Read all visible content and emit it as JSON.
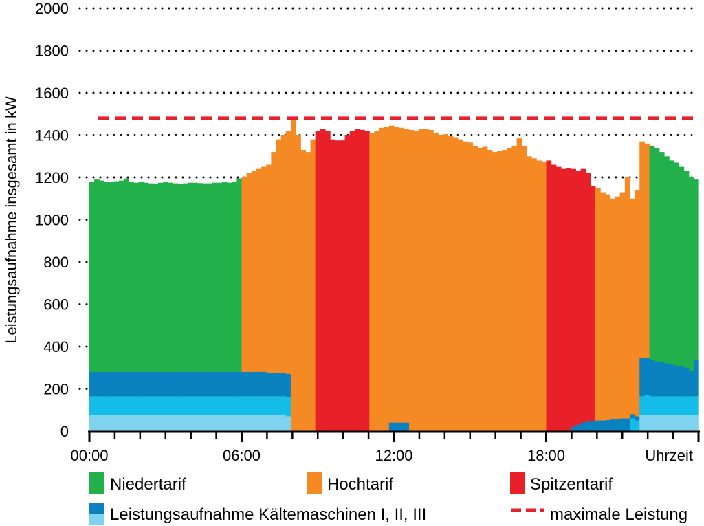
{
  "chart_data": {
    "type": "bar",
    "ylabel": "Leistungsaufnahme insgesamt in kW",
    "xlabel": "Uhrzeit",
    "ylim": [
      0,
      2000
    ],
    "xlim": [
      0,
      24
    ],
    "yticks": [
      0,
      200,
      400,
      600,
      800,
      1000,
      1200,
      1400,
      1600,
      1800,
      2000
    ],
    "xtick_labels": [
      "00:00",
      "06:00",
      "12:00",
      "18:00"
    ],
    "xtick_hours": [
      0,
      6,
      12,
      18
    ],
    "grid": "dotted-horizontal",
    "max_power_kw": 1480,
    "colors": {
      "niedertarif": "#22b04b",
      "hochtarif": "#f58a25",
      "spitzentarif": "#e8202a",
      "chiller_light": "#7fd3ee",
      "chiller_mid": "#14bce8",
      "chiller_dark": "#0a82bf",
      "max_line": "#e8202a",
      "grid": "#000000"
    },
    "tariff_periods": [
      {
        "start": 0,
        "end": 6,
        "tariff": "niedertarif"
      },
      {
        "start": 6,
        "end": 9,
        "tariff": "hochtarif"
      },
      {
        "start": 9,
        "end": 11,
        "tariff": "spitzentarif"
      },
      {
        "start": 11,
        "end": 18,
        "tariff": "hochtarif"
      },
      {
        "start": 18,
        "end": 20,
        "tariff": "spitzentarif"
      },
      {
        "start": 20,
        "end": 22,
        "tariff": "hochtarif"
      },
      {
        "start": 22,
        "end": 24,
        "tariff": "niedertarif"
      }
    ],
    "total_kw": [
      1180,
      1190,
      1185,
      1180,
      1178,
      1182,
      1185,
      1195,
      1180,
      1175,
      1178,
      1175,
      1172,
      1170,
      1175,
      1180,
      1175,
      1172,
      1170,
      1172,
      1175,
      1175,
      1173,
      1172,
      1172,
      1175,
      1175,
      1180,
      1175,
      1180,
      1195,
      1200,
      1220,
      1230,
      1240,
      1250,
      1260,
      1320,
      1380,
      1400,
      1420,
      1470,
      1400,
      1330,
      1320,
      1380,
      1420,
      1430,
      1420,
      1380,
      1375,
      1375,
      1400,
      1420,
      1430,
      1425,
      1420,
      1410,
      1420,
      1435,
      1440,
      1445,
      1440,
      1435,
      1430,
      1425,
      1420,
      1430,
      1430,
      1425,
      1410,
      1400,
      1405,
      1395,
      1390,
      1380,
      1370,
      1365,
      1350,
      1340,
      1345,
      1330,
      1320,
      1325,
      1330,
      1340,
      1350,
      1385,
      1350,
      1300,
      1290,
      1280,
      1275,
      1280,
      1260,
      1250,
      1240,
      1245,
      1240,
      1230,
      1240,
      1220,
      1160,
      1150,
      1130,
      1120,
      1100,
      1110,
      1130,
      1200,
      1100,
      1140,
      1370,
      1360,
      1350,
      1340,
      1320,
      1300,
      1280,
      1270,
      1250,
      1230,
      1200,
      1190
    ],
    "chiller_light_kw": [
      75,
      75,
      75,
      75,
      75,
      75,
      75,
      75,
      75,
      75,
      75,
      75,
      75,
      75,
      75,
      75,
      75,
      75,
      75,
      75,
      75,
      75,
      75,
      75,
      75,
      75,
      75,
      75,
      75,
      75,
      75,
      75,
      75,
      75,
      75,
      75,
      75,
      75,
      75,
      75,
      70,
      0,
      0,
      0,
      0,
      0,
      0,
      0,
      0,
      0,
      0,
      0,
      0,
      0,
      0,
      0,
      0,
      0,
      0,
      0,
      0,
      0,
      0,
      0,
      0,
      0,
      0,
      0,
      0,
      0,
      0,
      0,
      0,
      0,
      0,
      0,
      0,
      0,
      0,
      0,
      0,
      0,
      0,
      0,
      0,
      0,
      0,
      0,
      0,
      0,
      0,
      0,
      0,
      0,
      0,
      0,
      0,
      0,
      0,
      0,
      0,
      0,
      0,
      0,
      0,
      0,
      0,
      0,
      0,
      0,
      0,
      0,
      75,
      75,
      75,
      75,
      75,
      75,
      75,
      75,
      75,
      75,
      75,
      75
    ],
    "chiller_mid_kw": [
      90,
      90,
      90,
      90,
      90,
      90,
      90,
      90,
      90,
      90,
      90,
      90,
      90,
      90,
      90,
      90,
      90,
      90,
      90,
      90,
      90,
      90,
      90,
      90,
      90,
      90,
      90,
      90,
      90,
      90,
      90,
      90,
      90,
      90,
      90,
      90,
      90,
      90,
      90,
      90,
      90,
      0,
      0,
      0,
      0,
      0,
      0,
      0,
      0,
      0,
      0,
      0,
      0,
      0,
      0,
      0,
      0,
      0,
      0,
      0,
      0,
      0,
      0,
      0,
      0,
      0,
      0,
      0,
      0,
      0,
      0,
      0,
      0,
      0,
      0,
      0,
      0,
      0,
      0,
      0,
      0,
      0,
      0,
      0,
      0,
      0,
      0,
      0,
      0,
      0,
      0,
      0,
      0,
      0,
      0,
      0,
      0,
      0,
      0,
      0,
      0,
      0,
      0,
      0,
      0,
      0,
      0,
      0,
      0,
      0,
      60,
      50,
      90,
      95,
      90,
      90,
      90,
      90,
      90,
      90,
      90,
      90,
      90,
      90
    ],
    "chiller_dark_kw": [
      115,
      115,
      115,
      115,
      115,
      115,
      115,
      115,
      115,
      115,
      115,
      115,
      115,
      115,
      115,
      115,
      115,
      115,
      115,
      115,
      115,
      115,
      115,
      115,
      115,
      115,
      115,
      115,
      115,
      115,
      115,
      115,
      115,
      115,
      115,
      115,
      110,
      110,
      110,
      110,
      110,
      0,
      0,
      0,
      0,
      0,
      0,
      0,
      0,
      0,
      0,
      0,
      0,
      0,
      0,
      0,
      0,
      0,
      0,
      0,
      0,
      40,
      40,
      40,
      40,
      0,
      0,
      0,
      0,
      0,
      0,
      0,
      0,
      0,
      0,
      0,
      0,
      0,
      0,
      0,
      0,
      0,
      0,
      0,
      0,
      0,
      0,
      0,
      0,
      0,
      0,
      0,
      0,
      0,
      0,
      0,
      0,
      0,
      20,
      30,
      40,
      45,
      48,
      50,
      50,
      52,
      55,
      55,
      60,
      60,
      20,
      20,
      180,
      175,
      170,
      165,
      160,
      155,
      150,
      145,
      140,
      135,
      120,
      170
    ],
    "legend": [
      {
        "key": "niedertarif",
        "label": "Niedertarif",
        "type": "patch"
      },
      {
        "key": "hochtarif",
        "label": "Hochtarif",
        "type": "patch"
      },
      {
        "key": "spitzentarif",
        "label": "Spitzentarif",
        "type": "patch"
      },
      {
        "key": "chiller",
        "label": "Leistungsaufnahme Kältemaschinen I, II, III",
        "type": "patch-split"
      },
      {
        "key": "max_line",
        "label": "maximale Leistung",
        "type": "dashed-line"
      }
    ]
  }
}
